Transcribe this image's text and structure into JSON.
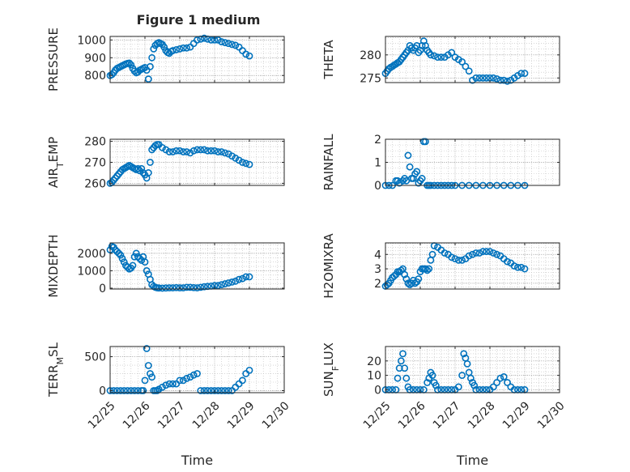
{
  "figure": {
    "title": "Figure 1 medium"
  },
  "colors": {
    "marker": "#0072BD",
    "axis": "#262626",
    "grid": "#bfbfbf"
  },
  "chart_data": [
    {
      "type": "scatter",
      "ylabel": "PRESSURE",
      "ylim": [
        760,
        1020
      ],
      "yticks": [
        800,
        900,
        1000
      ],
      "xlim": [
        0,
        5
      ],
      "xticks": [
        "12/25",
        "12/26",
        "12/27",
        "12/28",
        "12/29",
        "12/30"
      ],
      "xlabel": "",
      "grid": true,
      "series": [
        {
          "x": [
            0,
            0.05,
            0.1,
            0.15,
            0.2,
            0.25,
            0.3,
            0.35,
            0.4,
            0.45,
            0.5,
            0.55,
            0.6,
            0.65,
            0.7,
            0.75,
            0.8,
            0.85,
            0.9,
            0.95,
            1.0,
            1.05,
            1.1,
            1.15,
            1.2,
            1.25,
            1.3,
            1.35,
            1.4,
            1.45,
            1.5,
            1.55,
            1.6,
            1.65,
            1.7,
            1.75,
            1.8,
            1.9,
            2.0,
            2.1,
            2.2,
            2.3,
            2.4,
            2.5,
            2.6,
            2.7,
            2.8,
            2.9,
            3.0,
            3.1,
            3.2,
            3.3,
            3.4,
            3.5,
            3.6,
            3.7,
            3.8,
            3.9,
            4.0
          ],
          "y": [
            800,
            805,
            815,
            830,
            840,
            845,
            850,
            855,
            860,
            865,
            868,
            870,
            860,
            840,
            825,
            815,
            820,
            830,
            835,
            840,
            845,
            830,
            780,
            850,
            900,
            950,
            970,
            980,
            985,
            980,
            975,
            960,
            940,
            930,
            925,
            935,
            940,
            945,
            950,
            955,
            955,
            960,
            980,
            1000,
            1005,
            1010,
            1005,
            1000,
            1000,
            1000,
            990,
            985,
            980,
            975,
            970,
            960,
            940,
            920,
            910
          ]
        }
      ]
    },
    {
      "type": "scatter",
      "ylabel": "THETA",
      "ylim": [
        274,
        284
      ],
      "yticks": [
        275,
        280
      ],
      "xlim": [
        0,
        5
      ],
      "xticks": [
        "12/25",
        "12/26",
        "12/27",
        "12/28",
        "12/29",
        "12/30"
      ],
      "xlabel": "",
      "grid": true,
      "series": [
        {
          "x": [
            0,
            0.05,
            0.1,
            0.15,
            0.2,
            0.25,
            0.3,
            0.35,
            0.4,
            0.45,
            0.5,
            0.55,
            0.6,
            0.65,
            0.7,
            0.75,
            0.8,
            0.85,
            0.9,
            0.95,
            1.0,
            1.05,
            1.1,
            1.15,
            1.2,
            1.25,
            1.3,
            1.4,
            1.5,
            1.6,
            1.7,
            1.8,
            1.9,
            2.0,
            2.1,
            2.2,
            2.3,
            2.4,
            2.5,
            2.6,
            2.7,
            2.8,
            2.9,
            3.0,
            3.1,
            3.2,
            3.3,
            3.4,
            3.5,
            3.6,
            3.7,
            3.8,
            3.9,
            4.0
          ],
          "y": [
            276,
            276.5,
            277,
            277.3,
            277.5,
            277.8,
            278,
            278.3,
            278.5,
            279,
            279.5,
            280,
            280.5,
            281,
            282,
            281.5,
            281,
            281.5,
            282,
            280.5,
            281,
            282,
            283,
            282,
            281,
            280.5,
            280,
            279.8,
            279.5,
            279.5,
            279.5,
            280,
            280.5,
            279.5,
            279,
            278.5,
            277.5,
            276.5,
            274.5,
            275,
            275,
            275,
            275,
            275,
            275,
            274.8,
            274.5,
            274.5,
            274.3,
            274.5,
            275,
            275.5,
            276,
            276
          ]
        }
      ]
    },
    {
      "type": "scatter",
      "ylabel": "AIR_TEMP",
      "ylim": [
        259,
        281
      ],
      "yticks": [
        260,
        270,
        280
      ],
      "xlim": [
        0,
        5
      ],
      "xticks": [
        "12/25",
        "12/26",
        "12/27",
        "12/28",
        "12/29",
        "12/30"
      ],
      "xlabel": "",
      "grid": true,
      "series": [
        {
          "x": [
            0,
            0.05,
            0.1,
            0.15,
            0.2,
            0.25,
            0.3,
            0.35,
            0.4,
            0.45,
            0.5,
            0.55,
            0.6,
            0.65,
            0.7,
            0.75,
            0.8,
            0.85,
            0.9,
            0.95,
            1.0,
            1.05,
            1.1,
            1.15,
            1.2,
            1.25,
            1.3,
            1.35,
            1.4,
            1.5,
            1.6,
            1.7,
            1.8,
            1.9,
            2.0,
            2.1,
            2.2,
            2.3,
            2.4,
            2.5,
            2.6,
            2.7,
            2.8,
            2.9,
            3.0,
            3.1,
            3.2,
            3.3,
            3.4,
            3.5,
            3.6,
            3.7,
            3.8,
            3.9,
            4.0
          ],
          "y": [
            260,
            260.5,
            261.5,
            262.5,
            263.5,
            264.5,
            265.5,
            266.5,
            267,
            267.5,
            268,
            268.5,
            268,
            267.5,
            267,
            266.5,
            267,
            266,
            267,
            265,
            264,
            262.5,
            265,
            270,
            276,
            277,
            278,
            278.5,
            278.5,
            277,
            276,
            275,
            275,
            275.5,
            275.5,
            275,
            275,
            274.5,
            275.5,
            276,
            276,
            276,
            275.5,
            275.5,
            275.5,
            275,
            275,
            274.5,
            274,
            273,
            272,
            271,
            270,
            269.5,
            269
          ]
        }
      ]
    },
    {
      "type": "scatter",
      "ylabel": "RAINFALL",
      "ylim": [
        0,
        2
      ],
      "yticks": [
        0,
        1,
        2
      ],
      "xlim": [
        0,
        5
      ],
      "xticks": [
        "12/25",
        "12/26",
        "12/27",
        "12/28",
        "12/29",
        "12/30"
      ],
      "xlabel": "",
      "grid": true,
      "series": [
        {
          "x": [
            0,
            0.1,
            0.2,
            0.3,
            0.35,
            0.4,
            0.5,
            0.55,
            0.6,
            0.65,
            0.7,
            0.75,
            0.8,
            0.85,
            0.9,
            0.95,
            1.0,
            1.05,
            1.1,
            1.15,
            1.2,
            1.25,
            1.3,
            1.4,
            1.5,
            1.6,
            1.7,
            1.8,
            1.9,
            2.0,
            2.2,
            2.4,
            2.6,
            2.8,
            3.0,
            3.2,
            3.4,
            3.6,
            3.8,
            4.0
          ],
          "y": [
            0,
            0,
            0,
            0.2,
            0.2,
            0.1,
            0.2,
            0.3,
            0.2,
            1.3,
            0.8,
            0.3,
            0.3,
            0.5,
            0.6,
            0.1,
            0.2,
            0.3,
            1.9,
            1.9,
            0,
            0,
            0,
            0,
            0,
            0,
            0,
            0,
            0,
            0,
            0,
            0,
            0,
            0,
            0,
            0,
            0,
            0,
            0,
            0
          ]
        }
      ]
    },
    {
      "type": "scatter",
      "ylabel": "MIXDEPTH",
      "ylim": [
        -50,
        2600
      ],
      "yticks": [
        0,
        1000,
        2000
      ],
      "xlim": [
        0,
        5
      ],
      "xticks": [
        "12/25",
        "12/26",
        "12/27",
        "12/28",
        "12/29",
        "12/30"
      ],
      "xlabel": "",
      "grid": true,
      "series": [
        {
          "x": [
            0,
            0.05,
            0.1,
            0.15,
            0.2,
            0.25,
            0.3,
            0.35,
            0.4,
            0.45,
            0.5,
            0.55,
            0.6,
            0.65,
            0.7,
            0.75,
            0.8,
            0.85,
            0.9,
            0.95,
            1.0,
            1.05,
            1.1,
            1.15,
            1.2,
            1.25,
            1.3,
            1.35,
            1.4,
            1.5,
            1.6,
            1.7,
            1.8,
            1.9,
            2.0,
            2.1,
            2.2,
            2.3,
            2.4,
            2.5,
            2.6,
            2.7,
            2.8,
            2.9,
            3.0,
            3.1,
            3.2,
            3.3,
            3.4,
            3.5,
            3.6,
            3.7,
            3.8,
            3.9,
            4.0
          ],
          "y": [
            2200,
            2400,
            2350,
            2200,
            2100,
            2000,
            1900,
            1700,
            1500,
            1300,
            1200,
            1100,
            1150,
            1300,
            1800,
            2000,
            1800,
            1700,
            1600,
            1800,
            1500,
            1000,
            800,
            500,
            200,
            100,
            50,
            20,
            10,
            0,
            10,
            20,
            20,
            30,
            20,
            20,
            50,
            50,
            30,
            20,
            50,
            80,
            100,
            120,
            150,
            150,
            200,
            250,
            300,
            350,
            400,
            500,
            550,
            650,
            650
          ]
        }
      ]
    },
    {
      "type": "scatter",
      "ylabel": "H2OMIXRA",
      "ylim": [
        1.6,
        4.8
      ],
      "yticks": [
        2,
        3,
        4
      ],
      "xlim": [
        0,
        5
      ],
      "xticks": [
        "12/25",
        "12/26",
        "12/27",
        "12/28",
        "12/29",
        "12/30"
      ],
      "xlabel": "",
      "grid": true,
      "series": [
        {
          "x": [
            0,
            0.05,
            0.1,
            0.15,
            0.2,
            0.25,
            0.3,
            0.35,
            0.4,
            0.45,
            0.5,
            0.55,
            0.6,
            0.65,
            0.7,
            0.75,
            0.8,
            0.85,
            0.9,
            0.95,
            1.0,
            1.05,
            1.1,
            1.15,
            1.2,
            1.25,
            1.3,
            1.35,
            1.4,
            1.5,
            1.6,
            1.7,
            1.8,
            1.9,
            2.0,
            2.1,
            2.2,
            2.3,
            2.4,
            2.5,
            2.6,
            2.7,
            2.8,
            2.9,
            3.0,
            3.1,
            3.2,
            3.3,
            3.4,
            3.5,
            3.6,
            3.7,
            3.8,
            3.9,
            4.0
          ],
          "y": [
            1.8,
            1.9,
            2.0,
            2.2,
            2.4,
            2.5,
            2.6,
            2.8,
            2.8,
            2.9,
            3.0,
            2.6,
            2.3,
            2.0,
            1.9,
            2.0,
            2.2,
            2.0,
            2.1,
            2.3,
            2.8,
            3.0,
            3.0,
            3.0,
            2.9,
            3.0,
            3.6,
            4.0,
            4.6,
            4.5,
            4.3,
            4.1,
            4.0,
            3.8,
            3.7,
            3.6,
            3.6,
            3.7,
            3.9,
            4.0,
            4.1,
            4.1,
            4.2,
            4.2,
            4.2,
            4.1,
            4.0,
            3.9,
            3.7,
            3.5,
            3.4,
            3.2,
            3.1,
            3.1,
            3.0
          ]
        }
      ]
    },
    {
      "type": "scatter",
      "ylabel": "TERR_MSL",
      "ylim": [
        -30,
        650
      ],
      "yticks": [
        0,
        500
      ],
      "xlim": [
        0,
        5
      ],
      "xticks": [
        "12/25",
        "12/26",
        "12/27",
        "12/28",
        "12/29",
        "12/30"
      ],
      "xlabel": "Time",
      "grid": true,
      "series": [
        {
          "x": [
            0,
            0.1,
            0.2,
            0.3,
            0.4,
            0.5,
            0.6,
            0.7,
            0.8,
            0.9,
            0.95,
            1.0,
            1.05,
            1.1,
            1.15,
            1.2,
            1.25,
            1.3,
            1.35,
            1.4,
            1.5,
            1.6,
            1.7,
            1.8,
            1.9,
            2.0,
            2.1,
            2.2,
            2.3,
            2.4,
            2.5,
            2.6,
            2.7,
            2.8,
            2.9,
            3.0,
            3.1,
            3.2,
            3.3,
            3.4,
            3.5,
            3.6,
            3.7,
            3.8,
            3.9,
            4.0
          ],
          "y": [
            0,
            0,
            0,
            0,
            0,
            0,
            0,
            0,
            0,
            0,
            0,
            150,
            620,
            370,
            250,
            200,
            0,
            0,
            0,
            20,
            50,
            80,
            100,
            100,
            100,
            150,
            150,
            180,
            200,
            230,
            250,
            0,
            0,
            0,
            0,
            0,
            0,
            0,
            0,
            0,
            0,
            50,
            100,
            150,
            250,
            300
          ]
        }
      ]
    },
    {
      "type": "scatter",
      "ylabel": "SUN_FLUX",
      "ylim": [
        -2,
        30
      ],
      "yticks": [
        0,
        10,
        20
      ],
      "xlim": [
        0,
        5
      ],
      "xticks": [
        "12/25",
        "12/26",
        "12/27",
        "12/28",
        "12/29",
        "12/30"
      ],
      "xlabel": "Time",
      "grid": true,
      "series": [
        {
          "x": [
            0,
            0.1,
            0.2,
            0.3,
            0.35,
            0.4,
            0.45,
            0.5,
            0.55,
            0.6,
            0.65,
            0.7,
            0.8,
            0.9,
            1.0,
            1.1,
            1.2,
            1.25,
            1.3,
            1.35,
            1.4,
            1.45,
            1.5,
            1.6,
            1.7,
            1.8,
            1.9,
            2.0,
            2.1,
            2.2,
            2.25,
            2.3,
            2.35,
            2.4,
            2.45,
            2.5,
            2.55,
            2.6,
            2.7,
            2.8,
            2.9,
            3.0,
            3.1,
            3.2,
            3.3,
            3.4,
            3.5,
            3.6,
            3.7,
            3.8,
            3.9,
            4.0
          ],
          "y": [
            0,
            0,
            0,
            0,
            8,
            15,
            20,
            25,
            15,
            8,
            2,
            0,
            0,
            0,
            0,
            0,
            5,
            8,
            12,
            10,
            5,
            3,
            0,
            0,
            0,
            0,
            0,
            0,
            2,
            10,
            25,
            22,
            18,
            12,
            8,
            5,
            3,
            0,
            0,
            0,
            0,
            0,
            2,
            5,
            8,
            9,
            5,
            2,
            0,
            0,
            0,
            0
          ]
        }
      ]
    }
  ]
}
